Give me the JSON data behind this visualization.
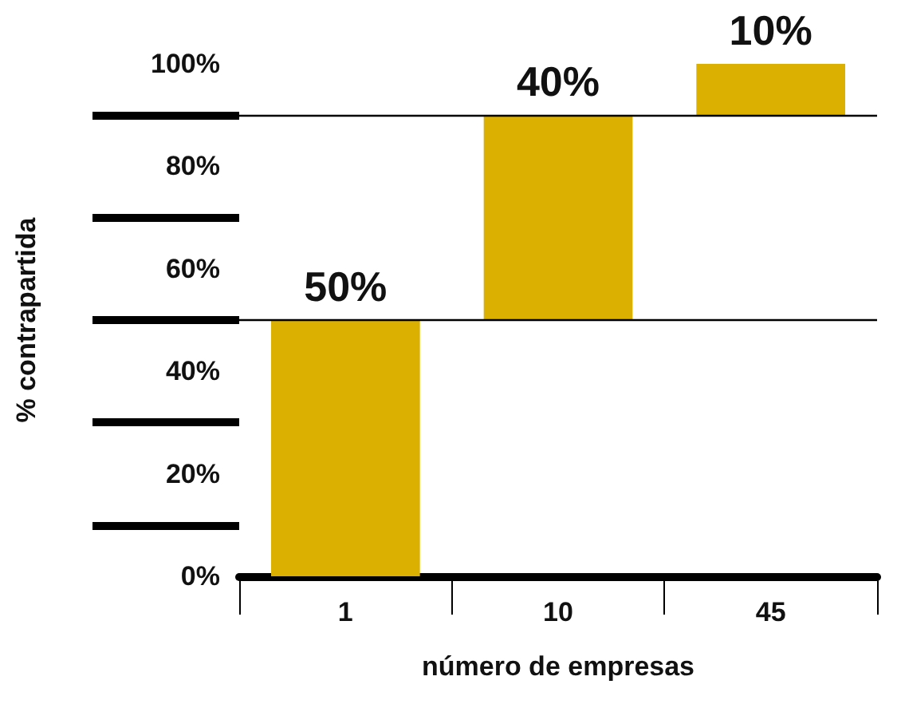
{
  "chart_data": {
    "type": "bar",
    "categories": [
      "1",
      "10",
      "45"
    ],
    "values": [
      50,
      40,
      10
    ],
    "base": [
      0,
      50,
      90
    ],
    "value_labels": [
      "50%",
      "40%",
      "10%"
    ],
    "color": "#dcb000",
    "xlabel": "número de empresas",
    "ylabel": "% contrapartida",
    "ylim": [
      0,
      100
    ],
    "yticks": [
      {
        "value": 0,
        "label": "0%"
      },
      {
        "value": 20,
        "label": "20%"
      },
      {
        "value": 40,
        "label": "40%"
      },
      {
        "value": 60,
        "label": "60%"
      },
      {
        "value": 80,
        "label": "80%"
      },
      {
        "value": 100,
        "label": "100%"
      }
    ],
    "ref_lines": [
      {
        "axis": "y",
        "value": 50,
        "label": null,
        "color": "#000000"
      },
      {
        "axis": "y",
        "value": 90,
        "label": null,
        "color": "#000000"
      }
    ],
    "grid": false
  }
}
